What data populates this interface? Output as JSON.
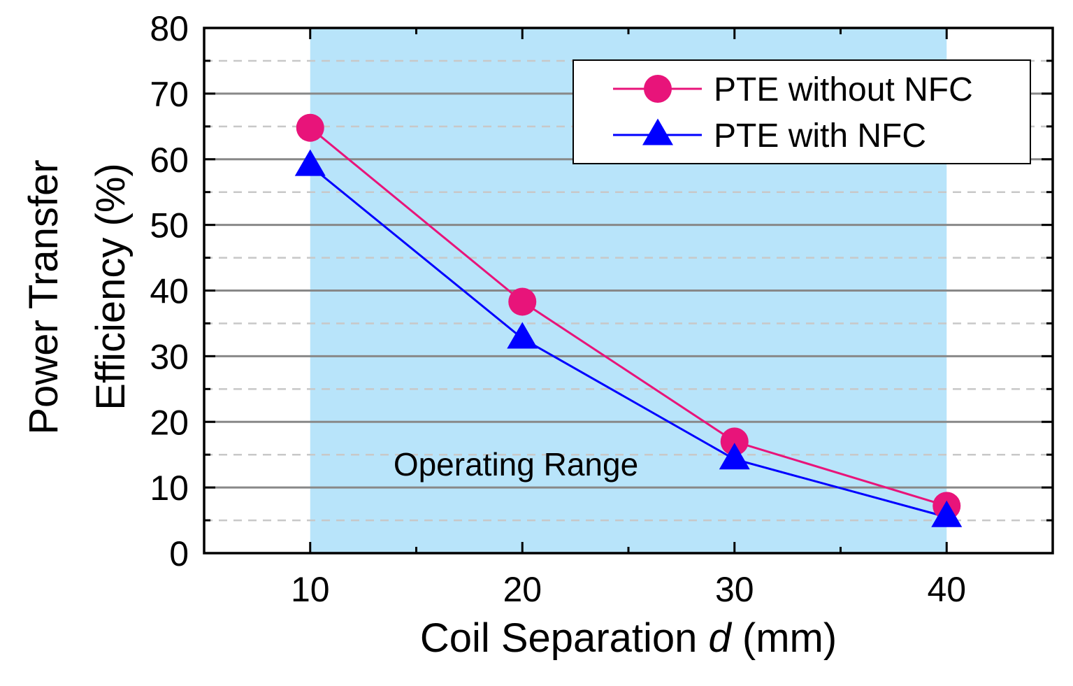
{
  "chart_data": {
    "type": "line",
    "x": [
      10,
      20,
      30,
      40
    ],
    "series": [
      {
        "name": "PTE without NFC",
        "values": [
          64.8,
          38.3,
          17.0,
          7.2
        ],
        "color": "#e8147a",
        "marker": "circle"
      },
      {
        "name": "PTE with NFC",
        "values": [
          59.0,
          32.7,
          14.3,
          5.5
        ],
        "color": "#0000ff",
        "marker": "triangle"
      }
    ],
    "xlabel_prefix": "Coil Separation ",
    "xlabel_var": "d",
    "xlabel_suffix": " (mm)",
    "ylabel_line1": "Power Transfer",
    "ylabel_line2": "Efficiency (%)",
    "xlim": [
      5,
      45
    ],
    "ylim": [
      0,
      80
    ],
    "xticks": [
      "10",
      "20",
      "30",
      "40"
    ],
    "yticks": [
      "0",
      "10",
      "20",
      "30",
      "40",
      "50",
      "60",
      "70",
      "80"
    ],
    "major_grid": true,
    "minor_grid": true,
    "legend_position": "top-right",
    "shaded_region": {
      "x_start": 10,
      "x_end": 40,
      "label": "Operating Range",
      "color": "#b8e4fa"
    }
  }
}
